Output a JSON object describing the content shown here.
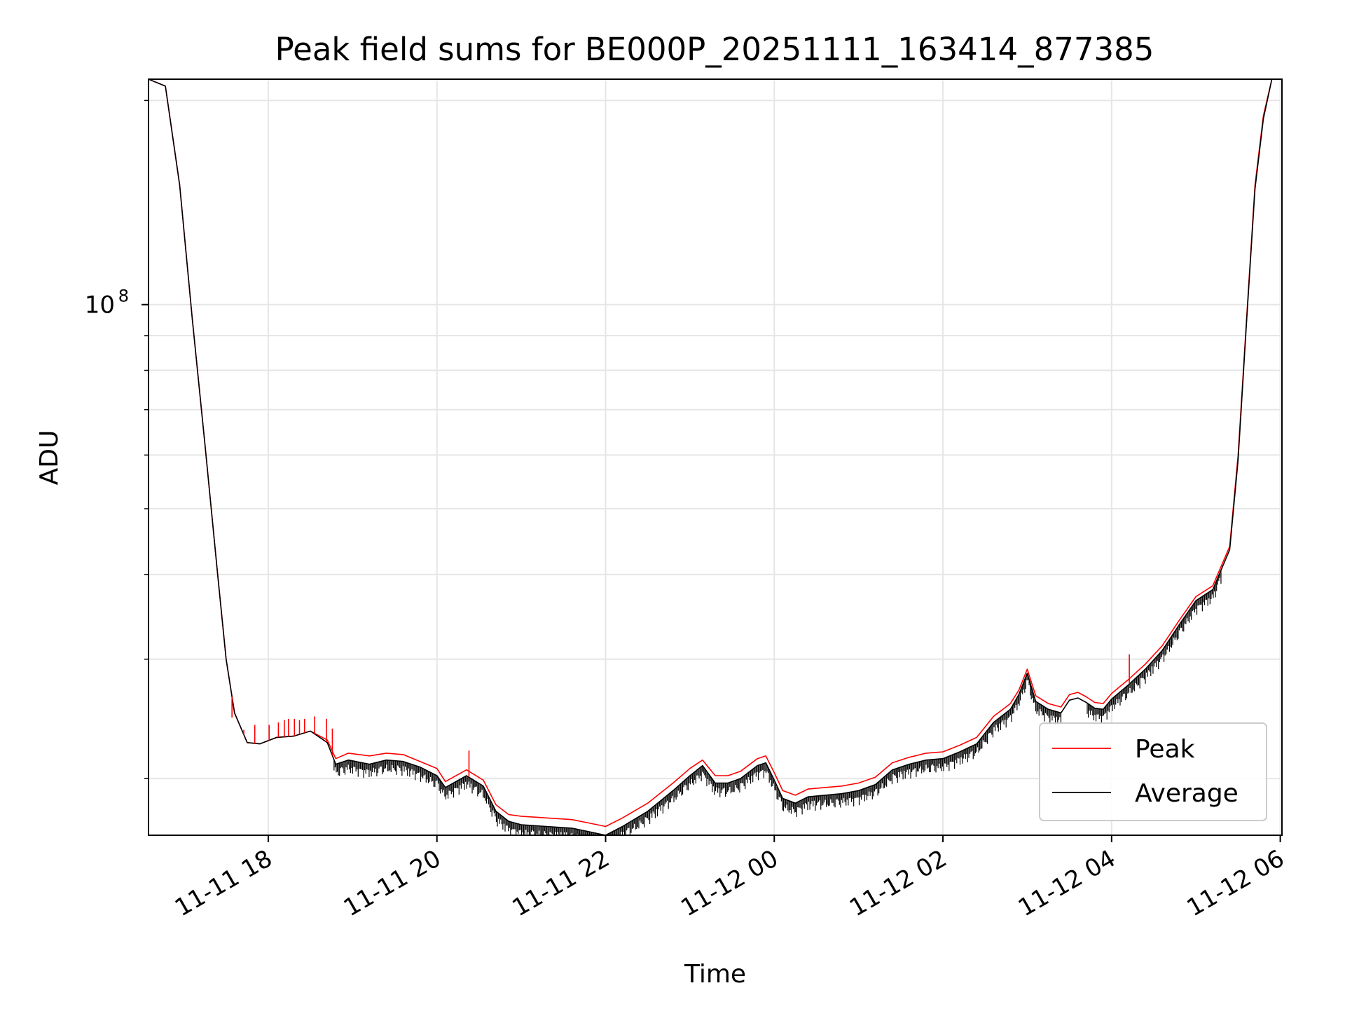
{
  "chart_data": {
    "type": "line",
    "title": "Peak field sums for BE000P_20251111_163414_877385",
    "xlabel": "Time",
    "ylabel": "ADU",
    "yscale": "log",
    "ylim": [
      16500000,
      215000000
    ],
    "x_unit": "hours since 11-11 00:00",
    "xlim": [
      16.58,
      30.02
    ],
    "x_ticks": [
      {
        "value": 18,
        "label": "11-11 18"
      },
      {
        "value": 20,
        "label": "11-11 20"
      },
      {
        "value": 22,
        "label": "11-11 22"
      },
      {
        "value": 24,
        "label": "11-12 00"
      },
      {
        "value": 26,
        "label": "11-12 02"
      },
      {
        "value": 28,
        "label": "11-12 04"
      },
      {
        "value": 30,
        "label": "11-12 06"
      }
    ],
    "y_major_ticks": [
      {
        "value": 100000000,
        "base": "10",
        "exponent": "8"
      }
    ],
    "y_minor_ticks": [
      20000000,
      30000000,
      40000000,
      50000000,
      60000000,
      70000000,
      80000000,
      90000000,
      200000000
    ],
    "grid": true,
    "legend_position": "lower-right",
    "legend": [
      "Peak",
      "Average"
    ],
    "series": [
      {
        "name": "Peak",
        "color": "#ff0000",
        "x": [
          16.58,
          16.78,
          16.95,
          17.1,
          17.25,
          17.4,
          17.5,
          17.6,
          17.75,
          17.9,
          18.1,
          18.3,
          18.5,
          18.7,
          18.8,
          18.95,
          19.2,
          19.4,
          19.6,
          19.8,
          20.0,
          20.1,
          20.35,
          20.55,
          20.7,
          20.85,
          21.0,
          21.3,
          21.6,
          21.8,
          22.0,
          22.2,
          22.5,
          22.8,
          23.0,
          23.15,
          23.3,
          23.45,
          23.6,
          23.8,
          23.9,
          24.0,
          24.1,
          24.25,
          24.4,
          24.6,
          24.8,
          25.0,
          25.2,
          25.4,
          25.6,
          25.8,
          26.0,
          26.2,
          26.4,
          26.6,
          26.8,
          26.9,
          27.0,
          27.1,
          27.25,
          27.4,
          27.5,
          27.6,
          27.7,
          27.8,
          27.9,
          28.0,
          28.2,
          28.4,
          28.6,
          28.8,
          29.0,
          29.2,
          29.4,
          29.5,
          29.6,
          29.7,
          29.8,
          29.9,
          30.0
        ],
        "y": [
          215000000,
          210000000,
          150000000,
          95000000,
          62000000,
          40000000,
          30000000,
          25000000,
          22600000,
          22500000,
          23000000,
          23100000,
          23500000,
          22800000,
          21400000,
          21800000,
          21600000,
          21800000,
          21700000,
          21200000,
          20700000,
          19800000,
          20600000,
          19900000,
          18300000,
          17700000,
          17600000,
          17500000,
          17400000,
          17200000,
          17000000,
          17500000,
          18400000,
          19700000,
          20700000,
          21300000,
          20200000,
          20200000,
          20500000,
          21400000,
          21600000,
          20400000,
          19200000,
          18900000,
          19300000,
          19400000,
          19500000,
          19700000,
          20100000,
          21100000,
          21500000,
          21800000,
          21900000,
          22400000,
          23000000,
          24700000,
          25800000,
          27000000,
          29000000,
          26500000,
          25800000,
          25500000,
          26600000,
          26800000,
          26400000,
          25900000,
          25800000,
          26700000,
          28000000,
          29500000,
          31400000,
          34200000,
          37100000,
          38500000,
          44000000,
          60000000,
          95000000,
          150000000,
          190000000,
          215000000,
          215000000
        ]
      },
      {
        "name": "Average",
        "color": "#000000",
        "x": [
          16.58,
          16.78,
          16.95,
          17.1,
          17.25,
          17.4,
          17.5,
          17.6,
          17.75,
          17.9,
          18.1,
          18.3,
          18.5,
          18.7,
          18.8,
          18.95,
          19.2,
          19.4,
          19.6,
          19.8,
          20.0,
          20.1,
          20.35,
          20.55,
          20.7,
          20.85,
          21.0,
          21.3,
          21.6,
          21.8,
          22.0,
          22.2,
          22.5,
          22.8,
          23.0,
          23.15,
          23.3,
          23.45,
          23.6,
          23.8,
          23.9,
          24.0,
          24.1,
          24.25,
          24.4,
          24.6,
          24.8,
          25.0,
          25.2,
          25.4,
          25.6,
          25.8,
          26.0,
          26.2,
          26.4,
          26.6,
          26.8,
          26.9,
          27.0,
          27.1,
          27.25,
          27.4,
          27.5,
          27.6,
          27.7,
          27.8,
          27.9,
          28.0,
          28.2,
          28.4,
          28.6,
          28.8,
          29.0,
          29.2,
          29.4,
          29.5,
          29.6,
          29.7,
          29.8,
          29.9,
          30.0
        ],
        "y": [
          215000000,
          210000000,
          150000000,
          95000000,
          62000000,
          40000000,
          30000000,
          25000000,
          22600000,
          22500000,
          23000000,
          23100000,
          23500000,
          22600000,
          21000000,
          21300000,
          21000000,
          21300000,
          21200000,
          20800000,
          20200000,
          19400000,
          20200000,
          19500000,
          17900000,
          17300000,
          17100000,
          17000000,
          16900000,
          16700000,
          16500000,
          17000000,
          17900000,
          19200000,
          20200000,
          20900000,
          19700000,
          19700000,
          20000000,
          20900000,
          21100000,
          19900000,
          18700000,
          18400000,
          18800000,
          18900000,
          19000000,
          19200000,
          19600000,
          20600000,
          21000000,
          21300000,
          21400000,
          21900000,
          22500000,
          24200000,
          25300000,
          26600000,
          28600000,
          26000000,
          25300000,
          25000000,
          26100000,
          26300000,
          25900000,
          25400000,
          25300000,
          26200000,
          27500000,
          29000000,
          30900000,
          33700000,
          36600000,
          38000000,
          43500000,
          59000000,
          94000000,
          148000000,
          188000000,
          215000000,
          215000000
        ]
      }
    ],
    "spikes": {
      "peak_x": [
        17.57,
        17.71,
        17.84,
        18.01,
        18.12,
        18.19,
        18.24,
        18.31,
        18.37,
        18.43,
        18.55,
        18.69,
        18.76,
        20.38,
        28.21
      ],
      "peak_y": [
        24600000,
        23600000,
        24000000,
        24000000,
        24200000,
        24400000,
        24500000,
        24500000,
        24400000,
        24500000,
        24700000,
        24500000,
        23700000,
        22000000,
        30500000
      ]
    }
  }
}
